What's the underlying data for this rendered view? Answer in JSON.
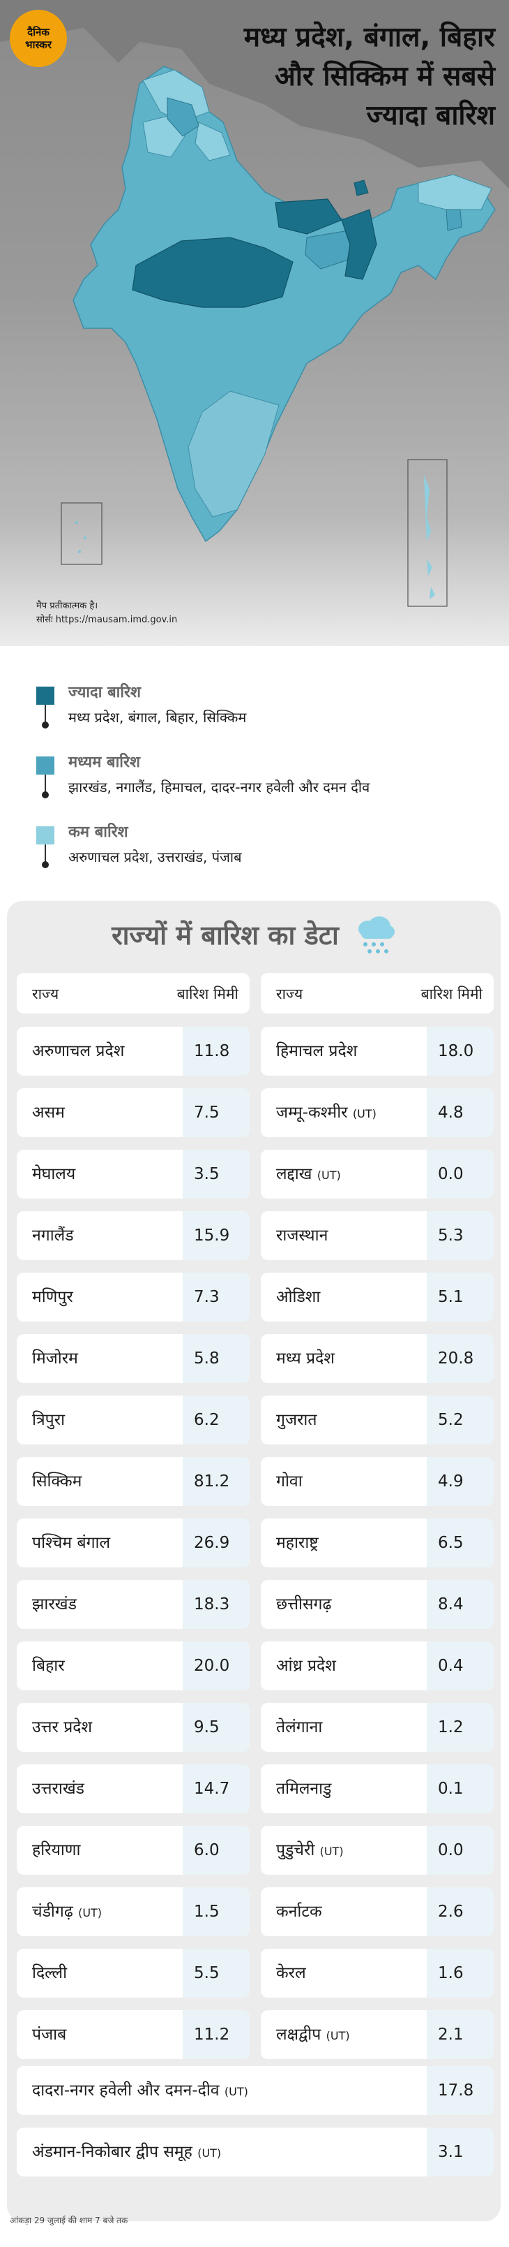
{
  "brand": {
    "line1": "दैनिक",
    "line2": "भास्कर"
  },
  "headline": "मध्य प्रदेश, बंगाल, बिहार और सिक्किम में सबसे ज्यादा बारिश",
  "map_note": {
    "line1": "मैप प्रतीकात्मक है।",
    "line2": "सोर्सः https://mausam.imd.gov.in"
  },
  "colors": {
    "high": "#1a7088",
    "medium": "#4ba3bd",
    "low": "#8ecfe0",
    "value_cell": "#eaf3f7"
  },
  "legend": [
    {
      "title": "ज्यादा बारिश",
      "states": "मध्य प्रदेश, बंगाल, बिहार, सिक्किम",
      "color": "#1a7088"
    },
    {
      "title": "मध्यम बारिश",
      "states": "झारखंड, नगालैंड, हिमाचल, दादर-नगर हवेली और दमन दीव",
      "color": "#4ba3bd"
    },
    {
      "title": "कम बारिश",
      "states": "अरुणाचल प्रदेश, उत्तराखंड, पंजाब",
      "color": "#8ecfe0"
    }
  ],
  "table": {
    "title": "राज्यों में बारिश का डेटा",
    "icon": "rain-cloud-icon",
    "col_state": "राज्य",
    "col_rain": "बारिश मिमी",
    "left": [
      {
        "state": "अरुणाचल प्रदेश",
        "ut": "",
        "value": "11.8"
      },
      {
        "state": "असम",
        "ut": "",
        "value": "7.5"
      },
      {
        "state": "मेघालय",
        "ut": "",
        "value": "3.5"
      },
      {
        "state": "नगालैंड",
        "ut": "",
        "value": "15.9"
      },
      {
        "state": "मणिपुर",
        "ut": "",
        "value": "7.3"
      },
      {
        "state": "मिजोरम",
        "ut": "",
        "value": "5.8"
      },
      {
        "state": "त्रिपुरा",
        "ut": "",
        "value": "6.2"
      },
      {
        "state": "सिक्किम",
        "ut": "",
        "value": "81.2"
      },
      {
        "state": "पश्चिम बंगाल",
        "ut": "",
        "value": "26.9"
      },
      {
        "state": "झारखंड",
        "ut": "",
        "value": "18.3"
      },
      {
        "state": "बिहार",
        "ut": "",
        "value": "20.0"
      },
      {
        "state": "उत्तर प्रदेश",
        "ut": "",
        "value": "9.5"
      },
      {
        "state": "उत्तराखंड",
        "ut": "",
        "value": "14.7"
      },
      {
        "state": "हरियाणा",
        "ut": "",
        "value": "6.0"
      },
      {
        "state": "चंडीगढ़",
        "ut": "(UT)",
        "value": "1.5"
      },
      {
        "state": "दिल्ली",
        "ut": "",
        "value": "5.5"
      },
      {
        "state": "पंजाब",
        "ut": "",
        "value": "11.2"
      }
    ],
    "right": [
      {
        "state": "हिमाचल प्रदेश",
        "ut": "",
        "value": "18.0"
      },
      {
        "state": "जम्मू-कश्मीर",
        "ut": "(UT)",
        "value": "4.8"
      },
      {
        "state": "लद्दाख",
        "ut": "(UT)",
        "value": "0.0"
      },
      {
        "state": "राजस्थान",
        "ut": "",
        "value": "5.3"
      },
      {
        "state": "ओडिशा",
        "ut": "",
        "value": "5.1"
      },
      {
        "state": "मध्य प्रदेश",
        "ut": "",
        "value": "20.8"
      },
      {
        "state": "गुजरात",
        "ut": "",
        "value": "5.2"
      },
      {
        "state": "गोवा",
        "ut": "",
        "value": "4.9"
      },
      {
        "state": "महाराष्ट्र",
        "ut": "",
        "value": "6.5"
      },
      {
        "state": "छत्तीसगढ़",
        "ut": "",
        "value": "8.4"
      },
      {
        "state": "आंध्र प्रदेश",
        "ut": "",
        "value": "0.4"
      },
      {
        "state": "तेलंगाना",
        "ut": "",
        "value": "1.2"
      },
      {
        "state": "तमिलनाडु",
        "ut": "",
        "value": "0.1"
      },
      {
        "state": "पुडुचेरी",
        "ut": "(UT)",
        "value": "0.0"
      },
      {
        "state": "कर्नाटक",
        "ut": "",
        "value": "2.6"
      },
      {
        "state": "केरल",
        "ut": "",
        "value": "1.6"
      },
      {
        "state": "लक्षद्वीप",
        "ut": "(UT)",
        "value": "2.1"
      }
    ],
    "full": [
      {
        "state": "दादरा-नगर हवेली और दमन-दीव",
        "ut": "(UT)",
        "value": "17.8"
      },
      {
        "state": "अंडमान-निकोबार द्वीप समूह",
        "ut": "(UT)",
        "value": "3.1"
      }
    ]
  },
  "footnote": "आंकड़ा 29 जुलाई की शाम 7 बजे तक"
}
